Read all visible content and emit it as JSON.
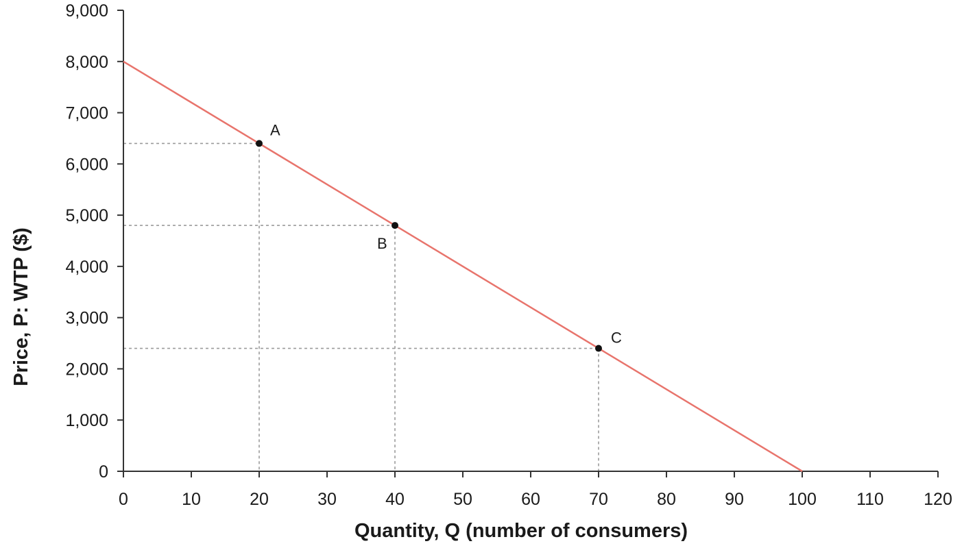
{
  "chart_data": {
    "type": "line",
    "title": "",
    "xlabel": "Quantity, Q (number of consumers)",
    "ylabel": "Price, P: WTP ($)",
    "xlim": [
      0,
      120
    ],
    "ylim": [
      0,
      9000
    ],
    "x_ticks": [
      0,
      10,
      20,
      30,
      40,
      50,
      60,
      70,
      80,
      90,
      100,
      110,
      120
    ],
    "x_tick_labels": [
      "0",
      "10",
      "20",
      "30",
      "40",
      "50",
      "60",
      "70",
      "80",
      "90",
      "100",
      "110",
      "120"
    ],
    "y_ticks": [
      0,
      1000,
      2000,
      3000,
      4000,
      5000,
      6000,
      7000,
      8000,
      9000
    ],
    "y_tick_labels": [
      "0",
      "1,000",
      "2,000",
      "3,000",
      "4,000",
      "5,000",
      "6,000",
      "7,000",
      "8,000",
      "9,000"
    ],
    "grid": false,
    "series": [
      {
        "x": [
          0,
          100
        ],
        "y": [
          8000,
          0
        ],
        "color": "#e8746c"
      }
    ],
    "points": [
      {
        "label": "A",
        "x": 20,
        "y": 6400
      },
      {
        "label": "B",
        "x": 40,
        "y": 4800
      },
      {
        "label": "C",
        "x": 70,
        "y": 2400
      }
    ]
  },
  "colors": {
    "axis": "#333333",
    "line": "#e8746c",
    "guide": "#9a9a9a",
    "point": "#111111"
  }
}
